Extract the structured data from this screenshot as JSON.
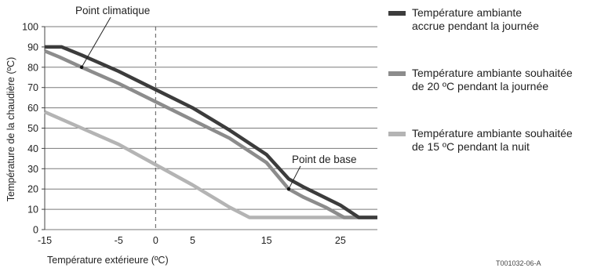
{
  "chart_data": {
    "type": "line",
    "xlabel": "Température extérieure (ºC)",
    "ylabel": "Température de la chaudière (ºC)",
    "xlim": [
      -15,
      30
    ],
    "ylim": [
      0,
      100
    ],
    "x_ticks": [
      {
        "value": -15,
        "label": "-15"
      },
      {
        "value": -5,
        "label": "-5"
      },
      {
        "value": 0,
        "label": "0"
      },
      {
        "value": 5,
        "label": "5"
      },
      {
        "value": 15,
        "label": "15"
      },
      {
        "value": 25,
        "label": "25"
      }
    ],
    "y_ticks": [
      0,
      10,
      20,
      30,
      40,
      50,
      60,
      70,
      80,
      90,
      100
    ],
    "grid": "horizontal",
    "reference_line_x": 0,
    "series": [
      {
        "name": "Température ambiante accrue pendant la journée",
        "color": "#3c3c3c",
        "x": [
          -15,
          -12.7,
          -10,
          -5,
          0,
          5,
          10,
          15,
          18,
          20,
          25,
          27.5,
          30
        ],
        "y": [
          90,
          90,
          86,
          78,
          69,
          60,
          49,
          37,
          25,
          21,
          12,
          6,
          6
        ]
      },
      {
        "name": "Température ambiante souhaitée de 20 ºC pendant la journée",
        "color": "#8c8c8c",
        "x": [
          -15,
          -13,
          -10,
          -5,
          0,
          5,
          10,
          15,
          18,
          20,
          23,
          25.5,
          30
        ],
        "y": [
          88,
          85,
          80,
          72,
          63,
          54,
          45,
          33,
          20,
          16,
          11,
          6,
          6
        ]
      },
      {
        "name": "Température ambiante souhaitée de 15 ºC pendant la nuit",
        "color": "#b4b4b4",
        "x": [
          -15,
          -10,
          -5,
          0,
          5,
          10,
          12.7,
          30
        ],
        "y": [
          58,
          50,
          42,
          32,
          22,
          11,
          6,
          6
        ]
      }
    ],
    "annotations": [
      {
        "label": "Point climatique",
        "x": -10,
        "y": 80
      },
      {
        "label": "Point de base",
        "x": 18,
        "y": 20
      }
    ]
  },
  "legend": [
    {
      "line1": "Température ambiante",
      "line2": "accrue pendant la journée",
      "color": "#3c3c3c"
    },
    {
      "line1": "Température ambiante souhaitée",
      "line2": "de 20 ºC pendant la journée",
      "color": "#8c8c8c"
    },
    {
      "line1": "Température ambiante souhaitée",
      "line2": "de 15 ºC pendant la nuit",
      "color": "#b4b4b4"
    }
  ],
  "reference_code": "T001032-06-A"
}
